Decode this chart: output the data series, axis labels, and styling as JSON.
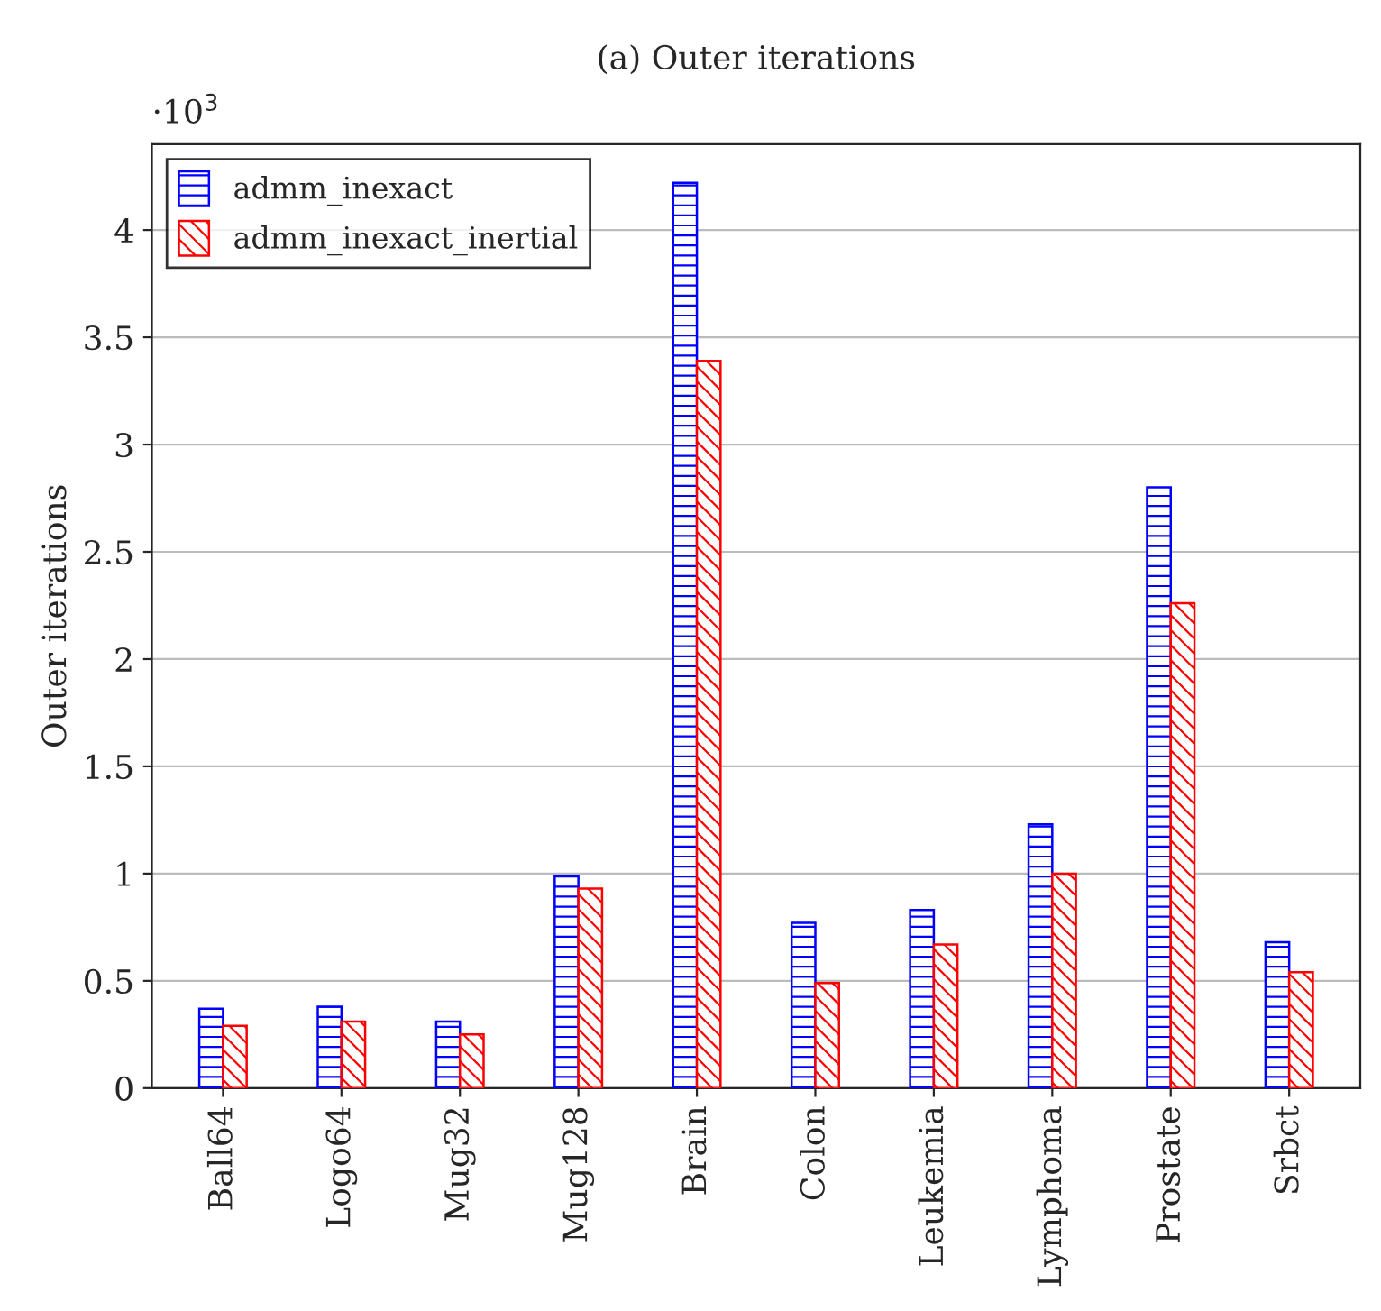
{
  "chart_data": {
    "type": "bar",
    "title": "(a) Outer iterations",
    "ylabel": "Outer iterations",
    "annotations": [
      "·10$^{3}$"
    ],
    "categories": [
      "Ball64",
      "Logo64",
      "Mug32",
      "Mug128",
      "Brain",
      "Colon",
      "Leukemia",
      "Lymphoma",
      "Prostate",
      "Srbct"
    ],
    "series": [
      {
        "name": "admm_inexact",
        "color": "#0000ff",
        "values": [
          0.37,
          0.38,
          0.31,
          0.99,
          4.22,
          0.77,
          0.83,
          1.23,
          2.8,
          0.68
        ]
      },
      {
        "name": "admm_inexact_inertial",
        "color": "#ff0000",
        "values": [
          0.29,
          0.31,
          0.25,
          0.93,
          3.39,
          0.49,
          0.67,
          1.0,
          2.26,
          0.54
        ]
      }
    ],
    "ylim": [
      0,
      4.4
    ],
    "yticks": [
      0,
      0.5,
      1,
      1.5,
      2,
      2.5,
      3,
      3.5,
      4
    ],
    "grid": "y",
    "legend": "top left"
  }
}
